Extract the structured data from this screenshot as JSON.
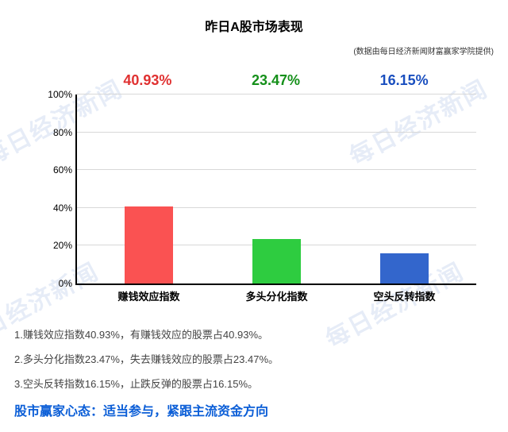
{
  "title": {
    "text": "昨日A股市场表现",
    "fontsize": 16,
    "color": "#000000"
  },
  "subtitle": {
    "text": "(数据由每日经济新闻财富赢家学院提供)",
    "fontsize": 10,
    "color": "#333333"
  },
  "watermark": {
    "text": "每日经济新闻",
    "color": "rgba(140,170,220,0.22)"
  },
  "chart": {
    "type": "bar",
    "ylim": [
      0,
      100
    ],
    "yticks": [
      0,
      20,
      40,
      60,
      80,
      100
    ],
    "ytick_suffix": "%",
    "grid_color": "#d8d8d8",
    "axis_color": "#000000",
    "background": "#ffffff",
    "bar_width_pct": 12,
    "label_fontsize": 13,
    "pct_fontsize": 18,
    "bars": [
      {
        "category": "赚钱效应指数",
        "value": 40.93,
        "color": "#fa5252",
        "label_color": "#e03131",
        "pct_text": "40.93%",
        "x_center_pct": 18
      },
      {
        "category": "多头分化指数",
        "value": 23.47,
        "color": "#2ecc40",
        "label_color": "#15901a",
        "pct_text": "23.47%",
        "x_center_pct": 50
      },
      {
        "category": "空头反转指数",
        "value": 16.15,
        "color": "#3366cc",
        "label_color": "#1a4fbf",
        "pct_text": "16.15%",
        "x_center_pct": 82
      }
    ]
  },
  "notes": {
    "fontsize": 13,
    "color": "#444444",
    "lines": [
      "1.赚钱效应指数40.93%，有赚钱效应的股票占40.93%。",
      "2.多头分化指数23.47%，失去赚钱效应的股票占23.47%。",
      "3.空头反转指数16.15%，止跌反弹的股票占16.15%。"
    ]
  },
  "footer": {
    "text": "股市赢家心态：适当参与，紧跟主流资金方向",
    "fontsize": 16,
    "color": "#0b5ed7"
  }
}
